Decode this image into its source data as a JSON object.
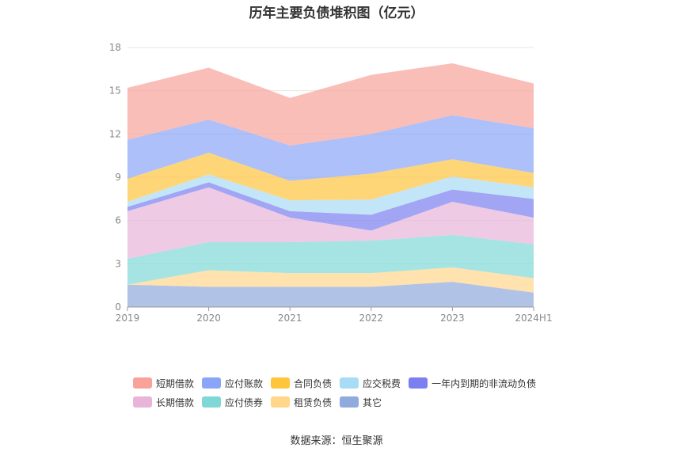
{
  "title": "历年主要负债堆积图（亿元）",
  "source": "数据来源：恒生聚源",
  "chart_data": {
    "type": "area",
    "stacked": true,
    "title": "历年主要负债堆积图（亿元）",
    "categories": [
      "2019",
      "2020",
      "2021",
      "2022",
      "2023",
      "2024H1"
    ],
    "ylim": [
      0,
      18
    ],
    "yticks": [
      0,
      3,
      6,
      9,
      12,
      15,
      18
    ],
    "grid": true,
    "legend_position": "bottom",
    "series": [
      {
        "name": "其它",
        "color": "#8faadc",
        "values": [
          1.55,
          1.4,
          1.4,
          1.4,
          1.75,
          1.0
        ]
      },
      {
        "name": "租赁负债",
        "color": "#ffd68a",
        "values": [
          0.0,
          1.15,
          0.95,
          0.95,
          1.0,
          1.0
        ]
      },
      {
        "name": "应付债券",
        "color": "#7fd8d6",
        "values": [
          1.8,
          1.95,
          2.15,
          2.25,
          2.25,
          2.35
        ]
      },
      {
        "name": "长期借款",
        "color": "#e8b4d8",
        "values": [
          3.3,
          3.8,
          1.7,
          0.7,
          2.3,
          1.85
        ]
      },
      {
        "name": "一年内到期的非流动负债",
        "color": "#7b7ff0",
        "values": [
          0.3,
          0.35,
          0.45,
          1.1,
          0.85,
          1.3
        ]
      },
      {
        "name": "应交税费",
        "color": "#a8dcf5",
        "values": [
          0.35,
          0.55,
          0.75,
          1.05,
          0.9,
          0.8
        ]
      },
      {
        "name": "合同负债",
        "color": "#ffc53d",
        "values": [
          1.6,
          1.5,
          1.35,
          1.8,
          1.2,
          1.0
        ]
      },
      {
        "name": "应付账款",
        "color": "#8aa5f7",
        "values": [
          2.7,
          2.3,
          2.45,
          2.75,
          3.05,
          3.1
        ]
      },
      {
        "name": "短期借款",
        "color": "#f8a29a",
        "values": [
          3.6,
          3.6,
          3.3,
          4.1,
          3.6,
          3.1
        ]
      }
    ],
    "legend_order": [
      "短期借款",
      "应付账款",
      "合同负债",
      "应交税费",
      "一年内到期的非流动负债",
      "长期借款",
      "应付债券",
      "租赁负债",
      "其它"
    ]
  }
}
